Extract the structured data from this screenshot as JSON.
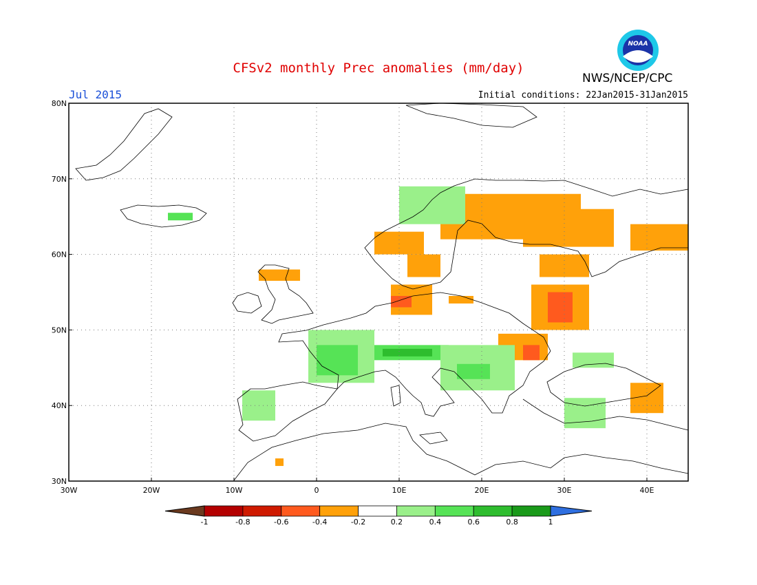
{
  "title": "CFSv2 monthly Prec anomalies (mm/day)",
  "month_label": "Jul 2015",
  "initial_conditions": "Initial conditions: 22Jan2015-31Jan2015",
  "agency": "NWS/NCEP/CPC",
  "logo_text": "NOAA",
  "map": {
    "lon_range": [
      -30,
      45
    ],
    "lat_range": [
      30,
      80
    ],
    "lon_ticks": [
      {
        "value": -30,
        "label": "30W"
      },
      {
        "value": -20,
        "label": "20W"
      },
      {
        "value": -10,
        "label": "10W"
      },
      {
        "value": 0,
        "label": "0"
      },
      {
        "value": 10,
        "label": "10E"
      },
      {
        "value": 20,
        "label": "20E"
      },
      {
        "value": 30,
        "label": "30E"
      },
      {
        "value": 40,
        "label": "40E"
      }
    ],
    "lat_ticks": [
      {
        "value": 30,
        "label": "30N"
      },
      {
        "value": 40,
        "label": "40N"
      },
      {
        "value": 50,
        "label": "50N"
      },
      {
        "value": 60,
        "label": "60N"
      },
      {
        "value": 70,
        "label": "70N"
      },
      {
        "value": 80,
        "label": "80N"
      }
    ],
    "grid": "dotted"
  },
  "colorbar": {
    "bounds": [
      "-1",
      "-0.8",
      "-0.6",
      "-0.4",
      "-0.2",
      "0.2",
      "0.4",
      "0.6",
      "0.8",
      "1"
    ],
    "colors": [
      "#6b3a1f",
      "#b40000",
      "#cf1a00",
      "#ff5a1e",
      "#ffa10a",
      "#ffffff",
      "#9af08a",
      "#56e356",
      "#2ebd2e",
      "#1a9a1a",
      "#2f6fe0"
    ]
  },
  "anomaly_regions": [
    {
      "name": "N Scandinavia",
      "lon": [
        15,
        32
      ],
      "lat": [
        62,
        68
      ],
      "value": -0.3
    },
    {
      "name": "W Norway",
      "lon": [
        7,
        13
      ],
      "lat": [
        60,
        63
      ],
      "value": -0.3
    },
    {
      "name": "Finland-Russia",
      "lon": [
        25,
        36
      ],
      "lat": [
        61,
        66
      ],
      "value": -0.3
    },
    {
      "name": "NW Russia east",
      "lon": [
        38,
        45
      ],
      "lat": [
        60.5,
        64
      ],
      "value": -0.3
    },
    {
      "name": "E Europe north",
      "lon": [
        27,
        33
      ],
      "lat": [
        57,
        60
      ],
      "value": -0.3
    },
    {
      "name": "Belarus-Russia",
      "lon": [
        26,
        33
      ],
      "lat": [
        50,
        56
      ],
      "value": -0.3
    },
    {
      "name": "Belarus core",
      "lon": [
        28,
        31
      ],
      "lat": [
        51,
        55
      ],
      "value": -0.5
    },
    {
      "name": "S Sweden",
      "lon": [
        11,
        15
      ],
      "lat": [
        57,
        60
      ],
      "value": -0.3
    },
    {
      "name": "Denmark-N Germany",
      "lon": [
        9,
        14
      ],
      "lat": [
        52,
        56
      ],
      "value": -0.3
    },
    {
      "name": "N Germany core",
      "lon": [
        9,
        11.5
      ],
      "lat": [
        53,
        54.5
      ],
      "value": -0.5
    },
    {
      "name": "Scotland",
      "lon": [
        -7,
        -2
      ],
      "lat": [
        56.5,
        58
      ],
      "value": -0.3
    },
    {
      "name": "Poland north",
      "lon": [
        16,
        19
      ],
      "lat": [
        53.5,
        54.5
      ],
      "value": -0.3
    },
    {
      "name": "Romania-Ukraine",
      "lon": [
        22,
        28
      ],
      "lat": [
        46,
        49.5
      ],
      "value": -0.3
    },
    {
      "name": "Romania core",
      "lon": [
        25,
        27
      ],
      "lat": [
        46,
        48
      ],
      "value": -0.5
    },
    {
      "name": "Black Sea east",
      "lon": [
        38,
        42
      ],
      "lat": [
        39,
        43
      ],
      "value": -0.3
    },
    {
      "name": "Morocco",
      "lon": [
        -5,
        -4
      ],
      "lat": [
        32,
        33
      ],
      "value": -0.3
    },
    {
      "name": "France",
      "lon": [
        -1,
        7
      ],
      "lat": [
        43,
        50
      ],
      "value": 0.3
    },
    {
      "name": "France core",
      "lon": [
        0,
        5
      ],
      "lat": [
        44,
        48
      ],
      "value": 0.5
    },
    {
      "name": "Alps",
      "lon": [
        7,
        16
      ],
      "lat": [
        46,
        48
      ],
      "value": 0.5
    },
    {
      "name": "Alps core",
      "lon": [
        8,
        14
      ],
      "lat": [
        46.5,
        47.5
      ],
      "value": 0.7
    },
    {
      "name": "Balkans",
      "lon": [
        15,
        24
      ],
      "lat": [
        42,
        48
      ],
      "value": 0.3
    },
    {
      "name": "Balkans core",
      "lon": [
        17,
        21
      ],
      "lat": [
        43.5,
        45.5
      ],
      "value": 0.5
    },
    {
      "name": "Spain",
      "lon": [
        -9,
        -5
      ],
      "lat": [
        38,
        42
      ],
      "value": 0.3
    },
    {
      "name": "Norway coast",
      "lon": [
        10,
        18
      ],
      "lat": [
        64,
        69
      ],
      "value": 0.3
    },
    {
      "name": "Iceland",
      "lon": [
        -18,
        -15
      ],
      "lat": [
        64.5,
        65.5
      ],
      "value": 0.4
    },
    {
      "name": "Turkey north",
      "lon": [
        30,
        35
      ],
      "lat": [
        37,
        41
      ],
      "value": 0.3
    },
    {
      "name": "Ukraine south",
      "lon": [
        31,
        36
      ],
      "lat": [
        45,
        47
      ],
      "value": 0.3
    }
  ]
}
